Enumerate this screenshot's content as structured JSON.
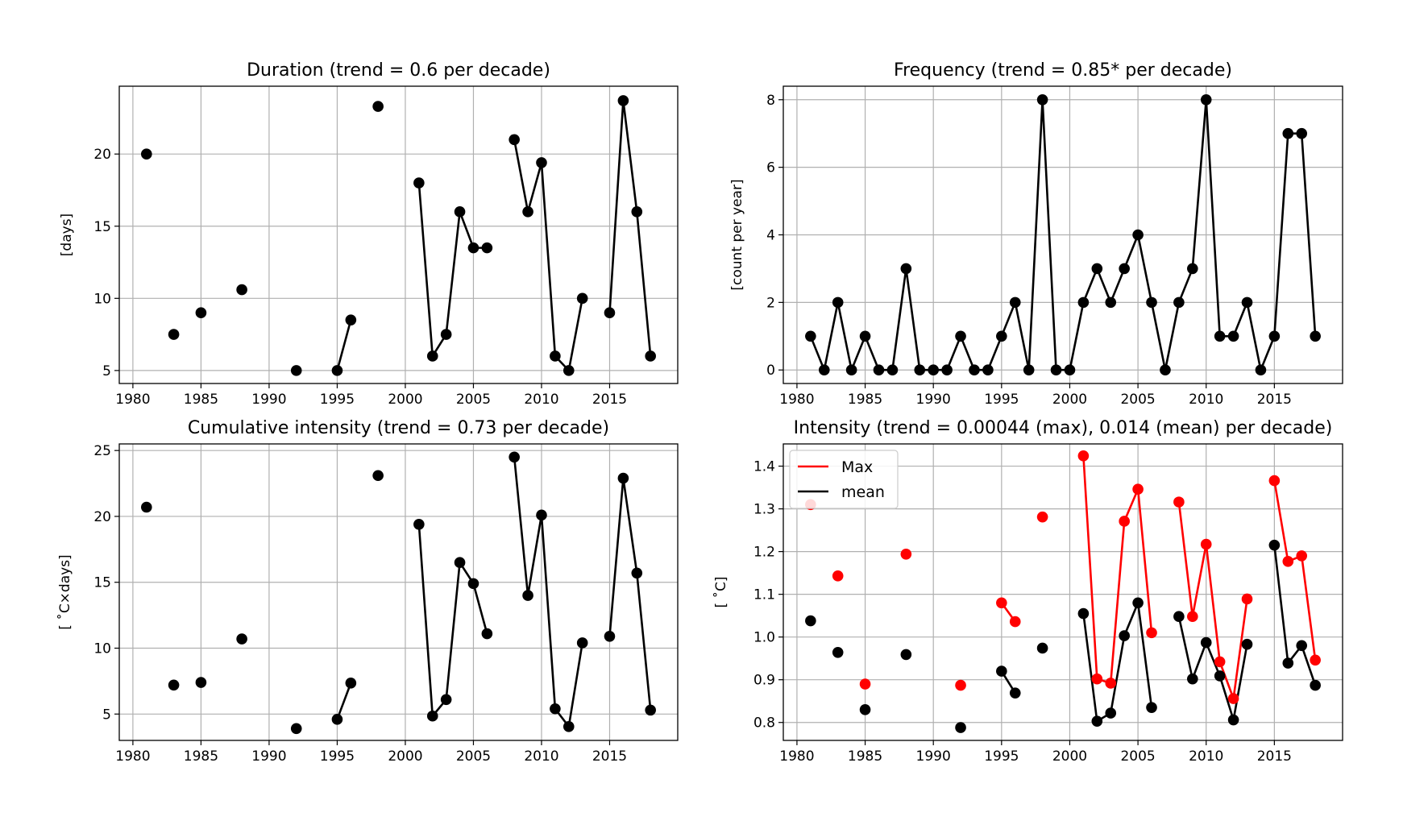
{
  "figure": {
    "background": "#ffffff"
  },
  "chart_data": [
    {
      "id": "duration",
      "type": "line",
      "title": "Duration (trend = 0.6 per decade)",
      "xlabel": "",
      "ylabel": "[days]",
      "xlim": [
        1979,
        2020
      ],
      "ylim": [
        4.1,
        24.7
      ],
      "xticks": [
        1980,
        1985,
        1990,
        1995,
        2000,
        2005,
        2010,
        2015
      ],
      "xtick_labels": [
        "1980",
        "1985",
        "1990",
        "1995",
        "2000",
        "2005",
        "2010",
        "2015"
      ],
      "yticks": [
        5,
        10,
        15,
        20
      ],
      "ytick_labels": [
        "5",
        "10",
        "15",
        "20"
      ],
      "grid": true,
      "legend": null,
      "series": [
        {
          "color": "#000000",
          "x": [
            1981,
            1982,
            1983,
            1984,
            1985,
            1986,
            1987,
            1988,
            1989,
            1990,
            1991,
            1992,
            1993,
            1994,
            1995,
            1996,
            1997,
            1998,
            1999,
            2000,
            2001,
            2002,
            2003,
            2004,
            2005,
            2006,
            2007,
            2008,
            2009,
            2010,
            2011,
            2012,
            2013,
            2014,
            2015,
            2016,
            2017,
            2018
          ],
          "y": [
            20,
            null,
            7.5,
            null,
            9,
            null,
            null,
            10.6,
            null,
            null,
            null,
            5,
            null,
            null,
            5,
            8.5,
            null,
            23.3,
            null,
            null,
            18,
            6,
            7.5,
            16,
            13.5,
            13.5,
            null,
            21,
            16,
            19.4,
            6,
            5,
            10,
            null,
            9,
            23.7,
            16,
            6
          ]
        }
      ]
    },
    {
      "id": "frequency",
      "type": "line",
      "title": "Frequency (trend = 0.85* per decade)",
      "xlabel": "",
      "ylabel": "[count per year]",
      "xlim": [
        1979,
        2020
      ],
      "ylim": [
        -0.4,
        8.4
      ],
      "xticks": [
        1980,
        1985,
        1990,
        1995,
        2000,
        2005,
        2010,
        2015
      ],
      "xtick_labels": [
        "1980",
        "1985",
        "1990",
        "1995",
        "2000",
        "2005",
        "2010",
        "2015"
      ],
      "yticks": [
        0,
        2,
        4,
        6,
        8
      ],
      "ytick_labels": [
        "0",
        "2",
        "4",
        "6",
        "8"
      ],
      "grid": true,
      "legend": null,
      "series": [
        {
          "color": "#000000",
          "x": [
            1981,
            1982,
            1983,
            1984,
            1985,
            1986,
            1987,
            1988,
            1989,
            1990,
            1991,
            1992,
            1993,
            1994,
            1995,
            1996,
            1997,
            1998,
            1999,
            2000,
            2001,
            2002,
            2003,
            2004,
            2005,
            2006,
            2007,
            2008,
            2009,
            2010,
            2011,
            2012,
            2013,
            2014,
            2015,
            2016,
            2017,
            2018
          ],
          "y": [
            1,
            0,
            2,
            0,
            1,
            0,
            0,
            3,
            0,
            0,
            0,
            1,
            0,
            0,
            1,
            2,
            0,
            8,
            0,
            0,
            2,
            3,
            2,
            3,
            4,
            2,
            0,
            2,
            3,
            8,
            1,
            1,
            2,
            0,
            1,
            7,
            7,
            1
          ]
        }
      ]
    },
    {
      "id": "cumulative",
      "type": "line",
      "title": "Cumulative intensity (trend = 0.73 per decade)",
      "xlabel": "",
      "ylabel": "[$^\\circ$C×days]",
      "ylabel_display": "[ ˚C×days]",
      "xlim": [
        1979,
        2020
      ],
      "ylim": [
        3,
        25.5
      ],
      "xticks": [
        1980,
        1985,
        1990,
        1995,
        2000,
        2005,
        2010,
        2015
      ],
      "xtick_labels": [
        "1980",
        "1985",
        "1990",
        "1995",
        "2000",
        "2005",
        "2010",
        "2015"
      ],
      "yticks": [
        5,
        10,
        15,
        20,
        25
      ],
      "ytick_labels": [
        "5",
        "10",
        "15",
        "20",
        "25"
      ],
      "grid": true,
      "legend": null,
      "series": [
        {
          "color": "#000000",
          "x": [
            1981,
            1982,
            1983,
            1984,
            1985,
            1986,
            1987,
            1988,
            1989,
            1990,
            1991,
            1992,
            1993,
            1994,
            1995,
            1996,
            1997,
            1998,
            1999,
            2000,
            2001,
            2002,
            2003,
            2004,
            2005,
            2006,
            2007,
            2008,
            2009,
            2010,
            2011,
            2012,
            2013,
            2014,
            2015,
            2016,
            2017,
            2018
          ],
          "y": [
            20.7,
            null,
            7.2,
            null,
            7.4,
            null,
            null,
            10.7,
            null,
            null,
            null,
            3.9,
            null,
            null,
            4.6,
            7.35,
            null,
            23.1,
            null,
            null,
            19.4,
            4.85,
            6.1,
            16.5,
            14.9,
            11.1,
            null,
            24.5,
            14,
            20.1,
            5.4,
            4.05,
            10.4,
            null,
            10.9,
            22.9,
            15.7,
            5.3
          ]
        }
      ]
    },
    {
      "id": "intensity",
      "type": "line",
      "title": "Intensity (trend = 0.00044 (max), 0.014 (mean) per decade)",
      "xlabel": "",
      "ylabel": "[$^\\circ$C]",
      "ylabel_display": "[ ˚C]",
      "xlim": [
        1979,
        2020
      ],
      "ylim": [
        0.758,
        1.452
      ],
      "xticks": [
        1980,
        1985,
        1990,
        1995,
        2000,
        2005,
        2010,
        2015
      ],
      "xtick_labels": [
        "1980",
        "1985",
        "1990",
        "1995",
        "2000",
        "2005",
        "2010",
        "2015"
      ],
      "yticks": [
        0.8,
        0.9,
        1.0,
        1.1,
        1.2,
        1.3,
        1.4
      ],
      "ytick_labels": [
        "0.8",
        "0.9",
        "1.0",
        "1.1",
        "1.2",
        "1.3",
        "1.4"
      ],
      "grid": true,
      "legend": "upper left",
      "series": [
        {
          "name": "Max",
          "color": "#ff0000",
          "x": [
            1981,
            1982,
            1983,
            1984,
            1985,
            1986,
            1987,
            1988,
            1989,
            1990,
            1991,
            1992,
            1993,
            1994,
            1995,
            1996,
            1997,
            1998,
            1999,
            2000,
            2001,
            2002,
            2003,
            2004,
            2005,
            2006,
            2007,
            2008,
            2009,
            2010,
            2011,
            2012,
            2013,
            2014,
            2015,
            2016,
            2017,
            2018
          ],
          "y": [
            1.31,
            null,
            1.143,
            null,
            0.89,
            null,
            null,
            1.194,
            null,
            null,
            null,
            0.887,
            null,
            null,
            1.08,
            1.036,
            null,
            1.281,
            null,
            null,
            1.424,
            0.902,
            0.892,
            1.271,
            1.346,
            1.01,
            null,
            1.316,
            1.048,
            1.217,
            0.942,
            0.856,
            1.089,
            null,
            1.366,
            1.177,
            1.19,
            0.946
          ]
        },
        {
          "name": "mean",
          "color": "#000000",
          "x": [
            1981,
            1982,
            1983,
            1984,
            1985,
            1986,
            1987,
            1988,
            1989,
            1990,
            1991,
            1992,
            1993,
            1994,
            1995,
            1996,
            1997,
            1998,
            1999,
            2000,
            2001,
            2002,
            2003,
            2004,
            2005,
            2006,
            2007,
            2008,
            2009,
            2010,
            2011,
            2012,
            2013,
            2014,
            2015,
            2016,
            2017,
            2018
          ],
          "y": [
            1.038,
            null,
            0.964,
            null,
            0.83,
            null,
            null,
            0.959,
            null,
            null,
            null,
            0.788,
            null,
            null,
            0.92,
            0.869,
            null,
            0.974,
            null,
            null,
            1.055,
            0.803,
            0.822,
            1.003,
            1.08,
            0.835,
            null,
            1.048,
            0.902,
            0.987,
            0.909,
            0.806,
            0.983,
            null,
            1.215,
            0.939,
            0.98,
            0.887
          ]
        }
      ]
    }
  ]
}
